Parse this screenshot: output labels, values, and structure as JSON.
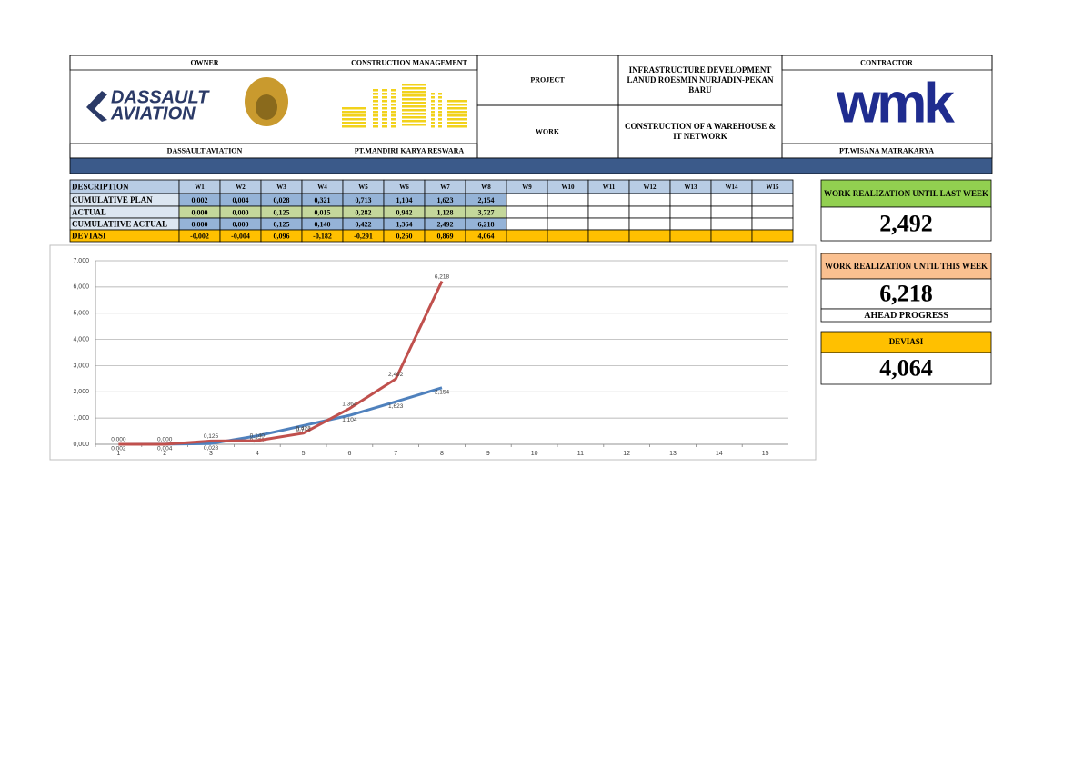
{
  "header": {
    "owner_label": "OWNER",
    "cm_label": "CONSTRUCTION MANAGEMENT",
    "project_label": "PROJECT",
    "project": "INFRASTRUCTURE DEVELOPMENT LANUD ROESMIN NURJADIN-PEKAN BARU",
    "work_label": "WORK",
    "work": "CONSTRUCTION OF A WAREHOUSE & IT NETWORK",
    "contractor_label": "CONTRACTOR",
    "owner_logo": [
      "DASSAULT",
      "AVIATION"
    ],
    "contractor_logo": "wmk",
    "owner": "DASSAULT AVIATION",
    "cm": "PT.MANDIRI KARYA RESWARA",
    "contractor": "PT.WISANA MATRAKARYA"
  },
  "table": {
    "header": [
      "DESCRIPTION",
      "W1",
      "W2",
      "W3",
      "W4",
      "W5",
      "W6",
      "W7",
      "W8",
      "W9",
      "W10",
      "W11",
      "W12",
      "W13",
      "W14",
      "W15"
    ],
    "rows": [
      {
        "label": "CUMULATIVE PLAN",
        "values": [
          "0,002",
          "0,004",
          "0,028",
          "0,321",
          "0,713",
          "1,104",
          "1,623",
          "2,154"
        ]
      },
      {
        "label": "ACTUAL",
        "values": [
          "0,000",
          "0,000",
          "0,125",
          "0,015",
          "0,282",
          "0,942",
          "1,128",
          "3,727"
        ]
      },
      {
        "label": "CUMULATIIVE ACTUAL",
        "values": [
          "0,000",
          "0,000",
          "0,125",
          "0,140",
          "0,422",
          "1,364",
          "2,492",
          "6,218"
        ]
      },
      {
        "label": "DEVIASI",
        "values": [
          "-0,002",
          "-0,004",
          "0,096",
          "-0,182",
          "-0,291",
          "0,260",
          "0,869",
          "4,064"
        ]
      }
    ]
  },
  "summary": {
    "last_week": {
      "title": "WORK REALIZATION UNTIL LAST WEEK",
      "value": "2,492"
    },
    "this_week": {
      "title": "WORK REALIZATION UNTIL THIS WEEK",
      "value": "6,218",
      "note": "AHEAD PROGRESS"
    },
    "deviasi": {
      "title": "DEVIASI",
      "value": "4,064"
    }
  },
  "chart_data": {
    "type": "line",
    "categories": [
      "1",
      "2",
      "3",
      "4",
      "5",
      "6",
      "7",
      "8",
      "9",
      "10",
      "11",
      "12",
      "13",
      "14",
      "15"
    ],
    "series": [
      {
        "name": "CUMULATIVE PLAN",
        "color": "#4f81bd",
        "values": [
          0.002,
          0.004,
          0.028,
          0.321,
          0.713,
          1.104,
          1.623,
          2.154,
          null,
          null,
          null,
          null,
          null,
          null,
          null
        ],
        "value_labels": [
          "0,002",
          "0,004",
          "0,028",
          "0,321",
          "0,713",
          "1,104",
          "1,623",
          "2,154",
          null,
          null,
          null,
          null,
          null,
          null,
          null
        ]
      },
      {
        "name": "CUMULATIIVE ACTUAL",
        "color": "#c0504d",
        "values": [
          0,
          0,
          0.125,
          0.14,
          0.422,
          1.364,
          2.492,
          6.218,
          null,
          null,
          null,
          null,
          null,
          null,
          null
        ],
        "value_labels": [
          "0,000",
          "0,000",
          "0,125",
          "0,140",
          "0,422",
          "1,364",
          "2,492",
          "6,218",
          null,
          null,
          null,
          null,
          null,
          null,
          null
        ]
      }
    ],
    "ylim": [
      0,
      7
    ],
    "yticks": [
      {
        "value": 0,
        "label": "0,000"
      },
      {
        "value": 1,
        "label": "1,000"
      },
      {
        "value": 2,
        "label": "2,000"
      },
      {
        "value": 3,
        "label": "3,000"
      },
      {
        "value": 4,
        "label": "4,000"
      },
      {
        "value": 5,
        "label": "5,000"
      },
      {
        "value": 6,
        "label": "6,000"
      },
      {
        "value": 7,
        "label": "7,000"
      }
    ],
    "grid": true
  }
}
